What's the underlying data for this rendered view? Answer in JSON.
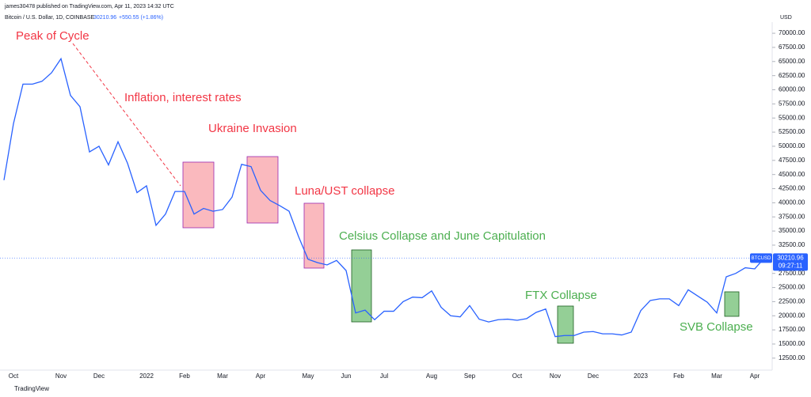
{
  "header": {
    "publisher": "james30478 published on TradingView.com, Apr 11, 2023 14:32 UTC",
    "symbol": "Bitcoin / U.S. Dollar, 1D, COINBASE",
    "change": "+550.55 (+1.86%)",
    "currency": "USD",
    "ticker": "BTCUSD",
    "countdown": "09:27:11",
    "footer": "TradingView"
  },
  "chart_data": {
    "type": "line",
    "last_price": 30210.96,
    "categories": [
      null,
      "Oct",
      null,
      null,
      null,
      null,
      "Nov",
      null,
      null,
      null,
      "Dec",
      null,
      null,
      null,
      null,
      "2022",
      null,
      null,
      null,
      "Feb",
      null,
      null,
      null,
      "Mar",
      null,
      null,
      null,
      "Apr",
      null,
      null,
      null,
      null,
      "May",
      null,
      null,
      null,
      "Jun",
      null,
      null,
      null,
      "Jul",
      null,
      null,
      null,
      null,
      "Aug",
      null,
      null,
      null,
      "Sep",
      null,
      null,
      null,
      null,
      "Oct",
      null,
      null,
      null,
      "Nov",
      null,
      null,
      null,
      "Dec",
      null,
      null,
      null,
      null,
      "2023",
      null,
      null,
      null,
      "Feb",
      null,
      null,
      null,
      "Mar",
      null,
      null,
      null,
      "Apr",
      null
    ],
    "series": [
      {
        "name": "BTCUSD",
        "color": "#2962ff",
        "values": [
          44000,
          54000,
          61000,
          61000,
          61500,
          63000,
          65500,
          59000,
          57000,
          49000,
          50000,
          46700,
          50800,
          47000,
          41800,
          43000,
          36000,
          38000,
          42000,
          42000,
          38000,
          39000,
          38500,
          38800,
          41000,
          46800,
          46400,
          42200,
          40400,
          39500,
          38500,
          34000,
          30000,
          29400,
          29000,
          29800,
          28000,
          20500,
          21000,
          19300,
          20800,
          20800,
          22500,
          23300,
          23200,
          24400,
          21500,
          20000,
          19800,
          21800,
          19400,
          18900,
          19300,
          19400,
          19200,
          19500,
          20600,
          21200,
          16300,
          16500,
          16500,
          17100,
          17200,
          16800,
          16800,
          16600,
          17100,
          20900,
          22700,
          23000,
          23000,
          21800,
          24600,
          23500,
          22400,
          20500,
          26900,
          27500,
          28500,
          28300,
          30210.96
        ]
      }
    ],
    "ylim": [
      10380,
      71970
    ],
    "yticks": [
      {
        "value": 12500,
        "label": "12500.00"
      },
      {
        "value": 15000,
        "label": "15000.00"
      },
      {
        "value": 17500,
        "label": "17500.00"
      },
      {
        "value": 20000,
        "label": "20000.00"
      },
      {
        "value": 22500,
        "label": "22500.00"
      },
      {
        "value": 25000,
        "label": "25000.00"
      },
      {
        "value": 27500,
        "label": "27500.00"
      },
      {
        "value": 32500,
        "label": "32500.00"
      },
      {
        "value": 35000,
        "label": "35000.00"
      },
      {
        "value": 37500,
        "label": "37500.00"
      },
      {
        "value": 40000,
        "label": "40000.00"
      },
      {
        "value": 42500,
        "label": "42500.00"
      },
      {
        "value": 45000,
        "label": "45000.00"
      },
      {
        "value": 47500,
        "label": "47500.00"
      },
      {
        "value": 50000,
        "label": "50000.00"
      },
      {
        "value": 52500,
        "label": "52500.00"
      },
      {
        "value": 55000,
        "label": "55000.00"
      },
      {
        "value": 57500,
        "label": "57500.00"
      },
      {
        "value": 60000,
        "label": "60000.00"
      },
      {
        "value": 62500,
        "label": "62500.00"
      },
      {
        "value": 65000,
        "label": "65000.00"
      },
      {
        "value": 67500,
        "label": "67500.00"
      },
      {
        "value": 70000,
        "label": "70000.00"
      }
    ],
    "annotations": [
      {
        "text": "Peak of Cycle",
        "color": "#f23645"
      },
      {
        "text": "Inflation, interest rates",
        "color": "#f23645"
      },
      {
        "text": "Ukraine Invasion",
        "color": "#f23645"
      },
      {
        "text": "Luna/UST collapse",
        "color": "#f23645"
      },
      {
        "text": "Celsius Collapse and June Capitulation",
        "color": "#4caf50"
      },
      {
        "text": "FTX Collapse",
        "color": "#4caf50"
      },
      {
        "text": "SVB Collapse",
        "color": "#4caf50"
      }
    ]
  }
}
